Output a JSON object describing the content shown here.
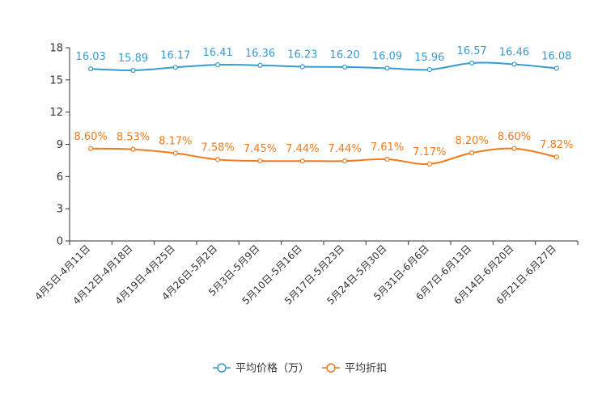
{
  "chart_data": {
    "type": "line",
    "title": "",
    "xlabel": "",
    "ylabel": "",
    "ylim": [
      0,
      18
    ],
    "yticks": [
      0,
      3,
      6,
      9,
      12,
      15,
      18
    ],
    "ytick_labels": [
      "0",
      "3",
      "6",
      "9",
      "12",
      "15",
      "18"
    ],
    "grid": false,
    "legend_position": "bottom-center",
    "categories": [
      "4月5日-4月11日",
      "4月12日-4月18日",
      "4月19日-4月25日",
      "4月26日-5月2日",
      "5月3日-5月9日",
      "5月10日-5月16日",
      "5月17日-5月23日",
      "5月24日-5月30日",
      "5月31日-6月6日",
      "6月7日-6月13日",
      "6月14日-6月20日",
      "6月21日-6月27日"
    ],
    "series": [
      {
        "name": "平均价格（万）",
        "color": "#3a9bd0",
        "values": [
          16.03,
          15.89,
          16.17,
          16.41,
          16.36,
          16.23,
          16.2,
          16.09,
          15.96,
          16.57,
          16.46,
          16.08
        ],
        "labels": [
          "16.03",
          "15.89",
          "16.17",
          "16.41",
          "16.36",
          "16.23",
          "16.20",
          "16.09",
          "15.96",
          "16.57",
          "16.46",
          "16.08"
        ]
      },
      {
        "name": "平均折扣",
        "color": "#f07a1e",
        "values": [
          8.6,
          8.53,
          8.17,
          7.58,
          7.45,
          7.44,
          7.44,
          7.61,
          7.17,
          8.2,
          8.6,
          7.82
        ],
        "labels": [
          "8.60%",
          "8.53%",
          "8.17%",
          "7.58%",
          "7.45%",
          "7.44%",
          "7.44%",
          "7.61%",
          "7.17%",
          "8.20%",
          "8.60%",
          "7.82%"
        ]
      }
    ]
  }
}
